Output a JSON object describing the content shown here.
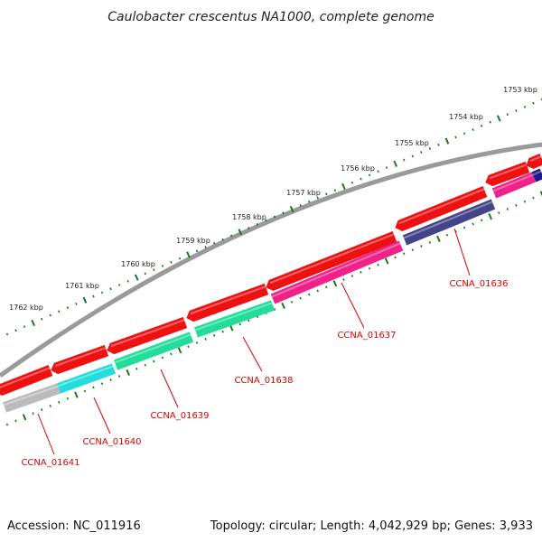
{
  "title": "Caulobacter crescentus NA1000, complete genome",
  "footer": {
    "accession": "Accession: NC_011916",
    "summary": "Topology: circular; Length: 4,042,929 bp; Genes: 3,933"
  },
  "colors": {
    "backbone": "#7a7a7a",
    "forward_gene": "#ee1111",
    "tick": "#1a7a1a",
    "label": "#dd0000"
  },
  "kbp_labels": [
    "1753 kbp",
    "1754 kbp",
    "1755 kbp",
    "1756 kbp",
    "1757 kbp",
    "1758 kbp",
    "1759 kbp",
    "1760 kbp",
    "1761 kbp",
    "1762 kbp"
  ],
  "genes": [
    {
      "name": "CCNA_01636",
      "color": "#44448a"
    },
    {
      "name": "CCNA_01637",
      "color": "#ee2288"
    },
    {
      "name": "CCNA_01638",
      "color": "#22dd99"
    },
    {
      "name": "CCNA_01639",
      "color": "#22dd99"
    },
    {
      "name": "CCNA_01640",
      "color": "#22dddd"
    },
    {
      "name": "CCNA_01641",
      "color": "#bbbbbb"
    }
  ],
  "extra_reverse_colors": [
    "#ee2288",
    "#1a1a88"
  ]
}
